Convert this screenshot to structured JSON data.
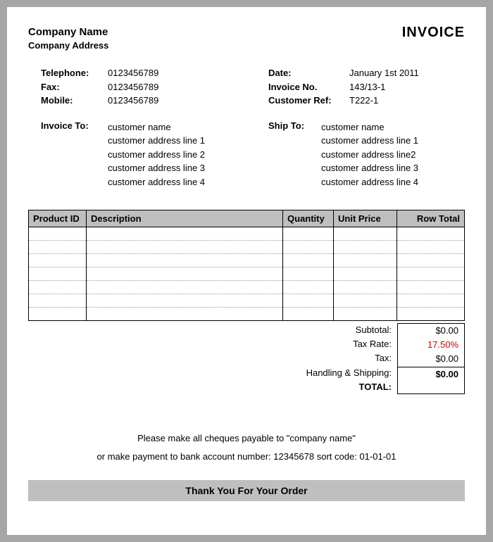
{
  "header": {
    "company_name": "Company Name",
    "company_address": "Company Address",
    "invoice_title": "INVOICE"
  },
  "contact": {
    "telephone_label": "Telephone:",
    "telephone": "0123456789",
    "fax_label": "Fax:",
    "fax": "0123456789",
    "mobile_label": "Mobile:",
    "mobile": "0123456789"
  },
  "meta": {
    "date_label": "Date:",
    "date": "January 1st 2011",
    "invoice_no_label": "Invoice No.",
    "invoice_no": "143/13-1",
    "customer_ref_label": "Customer Ref:",
    "customer_ref": "T222-1"
  },
  "bill_to": {
    "label": "Invoice To:",
    "name": "customer name",
    "line1": "customer address line 1",
    "line2": "customer address line 2",
    "line3": "customer address line 3",
    "line4": "customer address line 4"
  },
  "ship_to": {
    "label": "Ship To:",
    "name": "customer name",
    "line1": "customer address line 1",
    "line2": "customer address line2",
    "line3": "customer address line 3",
    "line4": "customer address line 4"
  },
  "table": {
    "columns": [
      "Product ID",
      "Description",
      "Quantity",
      "Unit Price",
      "Row Total"
    ],
    "row_count": 7,
    "header_bg": "#bfbfbf",
    "border_color": "#000000",
    "dotted_color": "#999999"
  },
  "totals": {
    "subtotal_label": "Subtotal:",
    "subtotal": "$0.00",
    "tax_rate_label": "Tax Rate:",
    "tax_rate": "17.50%",
    "tax_rate_color": "#cc0000",
    "tax_label": "Tax:",
    "tax": "$0.00",
    "shipping_label": "Handling & Shipping:",
    "shipping": "",
    "total_label": "TOTAL:",
    "total": "$0.00"
  },
  "footer": {
    "line1": "Please make all cheques payable to \"company name\"",
    "line2": "or make payment to bank account number: 12345678 sort code: 01-01-01",
    "thanks": "Thank You For Your Order"
  },
  "style": {
    "page_bg": "#ffffff",
    "outer_bg": "#a6a6a6",
    "font_family": "Arial",
    "base_fontsize": 13
  }
}
